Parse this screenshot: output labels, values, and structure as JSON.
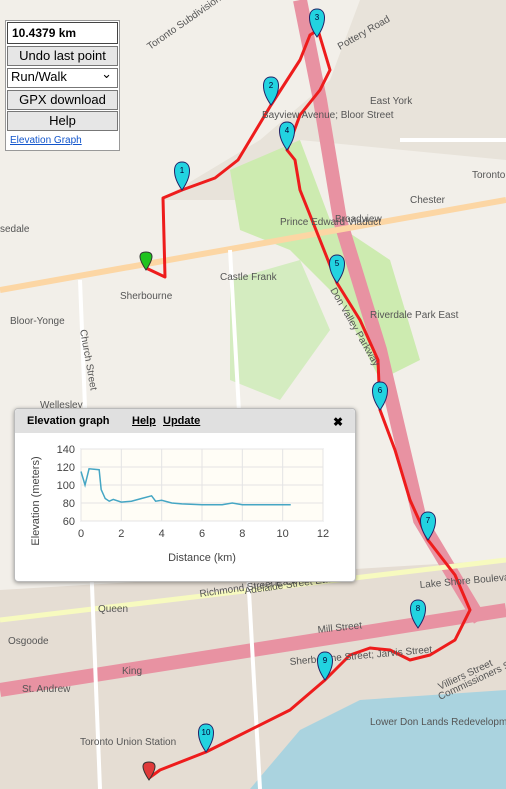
{
  "controls": {
    "distance": "10.4379 km",
    "undo": "Undo last point",
    "mode": "Run/Walk",
    "gpx": "GPX download",
    "help": "Help",
    "elevation_link": "Elevation Graph"
  },
  "markers": [
    "1",
    "2",
    "3",
    "4",
    "5",
    "6",
    "7",
    "8",
    "9",
    "10"
  ],
  "map_labels": [
    "Toronto Subdivision",
    "Pottery Road",
    "Bayview Avenue; Bloor Street",
    "East York",
    "Toronto",
    "Chester",
    "Broadview",
    "Prince Edward Viaduct",
    "Don Valley Parkway",
    "Castle Frank",
    "Sherbourne",
    "sedale",
    "Bloor-Yonge",
    "Church Street",
    "Wellesley",
    "Riverdale Park East",
    "Queen",
    "Osgoode",
    "King",
    "St. Andrew",
    "Richmond Street East",
    "Adelaide Street East",
    "Mill Street",
    "Lake Shore Boulevard",
    "Sherbourne Street; Jarvis Street",
    "Villiers Street",
    "Commissioners Street",
    "Lower Don Lands Redevelopment",
    "Toronto Union Station"
  ],
  "elevation_panel": {
    "title": "Elevation graph",
    "help": "Help",
    "update": "Update",
    "close": "✖"
  },
  "chart_data": {
    "type": "line",
    "xlabel": "Distance (km)",
    "ylabel": "Elevation (meters)",
    "x": [
      0,
      0.2,
      0.4,
      0.9,
      1.0,
      1.2,
      1.4,
      1.6,
      2,
      2.5,
      3,
      3.5,
      3.7,
      4,
      4.5,
      5,
      6,
      7,
      7.5,
      8,
      9,
      10,
      10.4
    ],
    "series": [
      {
        "color": "#45a6c4",
        "values": [
          115,
          100,
          118,
          117,
          95,
          85,
          82,
          84,
          81,
          82,
          85,
          88,
          82,
          83,
          80,
          79,
          78,
          78,
          80,
          78,
          78,
          78,
          78
        ]
      }
    ],
    "xlim": [
      0,
      12
    ],
    "ylim": [
      60,
      140
    ],
    "xticks": [
      0,
      2,
      4,
      6,
      8,
      10,
      12
    ],
    "yticks": [
      60,
      80,
      100,
      120,
      140
    ],
    "grid": true
  }
}
